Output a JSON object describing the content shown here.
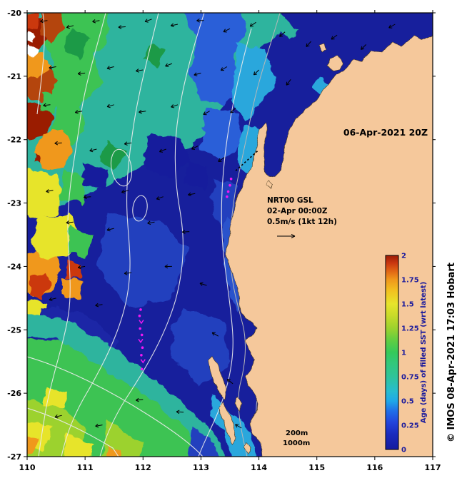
{
  "figure": {
    "credit": "© IMOS 08-Apr-2021 17:03 Hobart",
    "background": "#ffffff",
    "land_color": "#F5C89B"
  },
  "axes": {
    "lat_labels": [
      "-20",
      "-21",
      "-22",
      "-23",
      "-24",
      "-25",
      "-26",
      "-27"
    ],
    "lon_labels": [
      "110",
      "111",
      "112",
      "113",
      "114",
      "115",
      "116",
      "117"
    ]
  },
  "annotations": {
    "date_label": "06-Apr-2021 20Z",
    "model_line1": "NRT00 GSL",
    "model_line2": "02-Apr 00:00Z",
    "model_line3": "0.5m/s (1kt 12h)",
    "depth_label_200": "200m",
    "depth_label_1000": "1000m"
  },
  "colorbar": {
    "title": "Age (days) of filled SST (wrt latest)",
    "tick_labels_top_to_bottom": [
      "2",
      "1.75",
      "1.5",
      "1.25",
      "1",
      "0.75",
      "0.5",
      "0.25",
      "0"
    ],
    "min": 0,
    "max": 2,
    "colors_bottom_to_top": [
      "#151B9E",
      "#2244DC",
      "#1FA8E8",
      "#2EC49A",
      "#35C95A",
      "#9CD22E",
      "#E7E42B",
      "#F0981B",
      "#CB3810",
      "#9A1B06"
    ]
  },
  "chart_data": {
    "type": "heatmap",
    "variable": "Age (days) of filled SST (wrt latest)",
    "valid_time": "06-Apr-2021 20Z",
    "overlay_model": "NRT00 GSL",
    "overlay_model_time": "02-Apr 00:00Z",
    "vector_scale": "0.5m/s (1kt 12h)",
    "lon_range": [
      110,
      117
    ],
    "lat_range": [
      -27,
      -20
    ],
    "colorbar_range": [
      0,
      2
    ],
    "depth_contours_m": [
      200,
      1000
    ],
    "age_summary": [
      {
        "region": "central and coastal ocean east of ~112E",
        "age_days": "0-0.25"
      },
      {
        "region": "broad band 111E-114E north of ~23S",
        "age_days": "0.5-1"
      },
      {
        "region": "western edge 110E-111E",
        "age_days": "1.25-2"
      },
      {
        "region": "southwest corner south of ~25.5S",
        "age_days": "0.75-1.5"
      }
    ],
    "vectors_lon_lat_angledeg": [
      [
        110.35,
        -20.12,
        188
      ],
      [
        110.8,
        -20.2,
        196
      ],
      [
        111.25,
        -20.12,
        190
      ],
      [
        111.7,
        -20.22,
        184
      ],
      [
        112.15,
        -20.1,
        200
      ],
      [
        112.6,
        -20.18,
        192
      ],
      [
        113.05,
        -20.12,
        181
      ],
      [
        113.5,
        -20.25,
        206
      ],
      [
        113.95,
        -20.15,
        214
      ],
      [
        114.45,
        -20.3,
        221
      ],
      [
        114.9,
        -20.45,
        228
      ],
      [
        115.35,
        -20.35,
        216
      ],
      [
        115.85,
        -20.5,
        224
      ],
      [
        116.35,
        -20.18,
        210
      ],
      [
        110.5,
        -20.85,
        190
      ],
      [
        111.0,
        -20.95,
        186
      ],
      [
        111.5,
        -20.85,
        194
      ],
      [
        112.0,
        -20.9,
        189
      ],
      [
        112.5,
        -20.8,
        201
      ],
      [
        113.0,
        -20.95,
        196
      ],
      [
        113.45,
        -20.85,
        211
      ],
      [
        114.0,
        -20.9,
        224
      ],
      [
        114.55,
        -21.05,
        233
      ],
      [
        110.4,
        -21.45,
        186
      ],
      [
        110.95,
        -21.55,
        191
      ],
      [
        111.5,
        -21.45,
        196
      ],
      [
        112.05,
        -21.55,
        189
      ],
      [
        112.6,
        -21.45,
        199
      ],
      [
        113.15,
        -21.55,
        209
      ],
      [
        113.6,
        -21.5,
        223
      ],
      [
        110.6,
        -22.05,
        184
      ],
      [
        111.2,
        -22.15,
        194
      ],
      [
        111.8,
        -22.05,
        189
      ],
      [
        112.4,
        -22.15,
        201
      ],
      [
        112.95,
        -22.1,
        206
      ],
      [
        113.4,
        -22.28,
        216
      ],
      [
        110.45,
        -22.8,
        190
      ],
      [
        111.1,
        -22.9,
        185
      ],
      [
        111.75,
        -22.8,
        196
      ],
      [
        112.35,
        -22.9,
        199
      ],
      [
        112.9,
        -22.85,
        191
      ],
      [
        110.8,
        -23.3,
        186
      ],
      [
        111.5,
        -23.4,
        194
      ],
      [
        112.2,
        -23.3,
        190
      ],
      [
        112.8,
        -23.45,
        184
      ],
      [
        111.0,
        -24.0,
        190
      ],
      [
        111.8,
        -24.1,
        186
      ],
      [
        112.5,
        -24.0,
        181
      ],
      [
        110.5,
        -24.5,
        194
      ],
      [
        111.3,
        -24.6,
        189
      ],
      [
        113.1,
        -24.3,
        162
      ],
      [
        113.3,
        -25.1,
        150
      ],
      [
        113.55,
        -25.85,
        142
      ],
      [
        113.7,
        -26.55,
        150
      ],
      [
        112.7,
        -26.3,
        176
      ],
      [
        112.0,
        -26.1,
        186
      ],
      [
        110.6,
        -26.35,
        194
      ],
      [
        111.3,
        -26.5,
        190
      ]
    ],
    "drifter_track_south_lon_lat": [
      [
        111.96,
        -24.68
      ],
      [
        111.94,
        -24.78
      ],
      [
        111.97,
        -24.88
      ],
      [
        111.95,
        -24.98
      ],
      [
        111.98,
        -25.08
      ],
      [
        111.96,
        -25.18
      ],
      [
        111.99,
        -25.28
      ],
      [
        111.97,
        -25.4
      ],
      [
        112.0,
        -25.5
      ],
      [
        111.98,
        -25.62
      ]
    ],
    "drifter_track_cape_lon_lat": [
      [
        113.52,
        -22.62
      ],
      [
        113.5,
        -22.72
      ],
      [
        113.47,
        -22.82
      ],
      [
        113.45,
        -22.9
      ]
    ],
    "dotted_track_lon_lat": [
      [
        113.6,
        -22.49
      ],
      [
        114.0,
        -22.16
      ]
    ]
  }
}
